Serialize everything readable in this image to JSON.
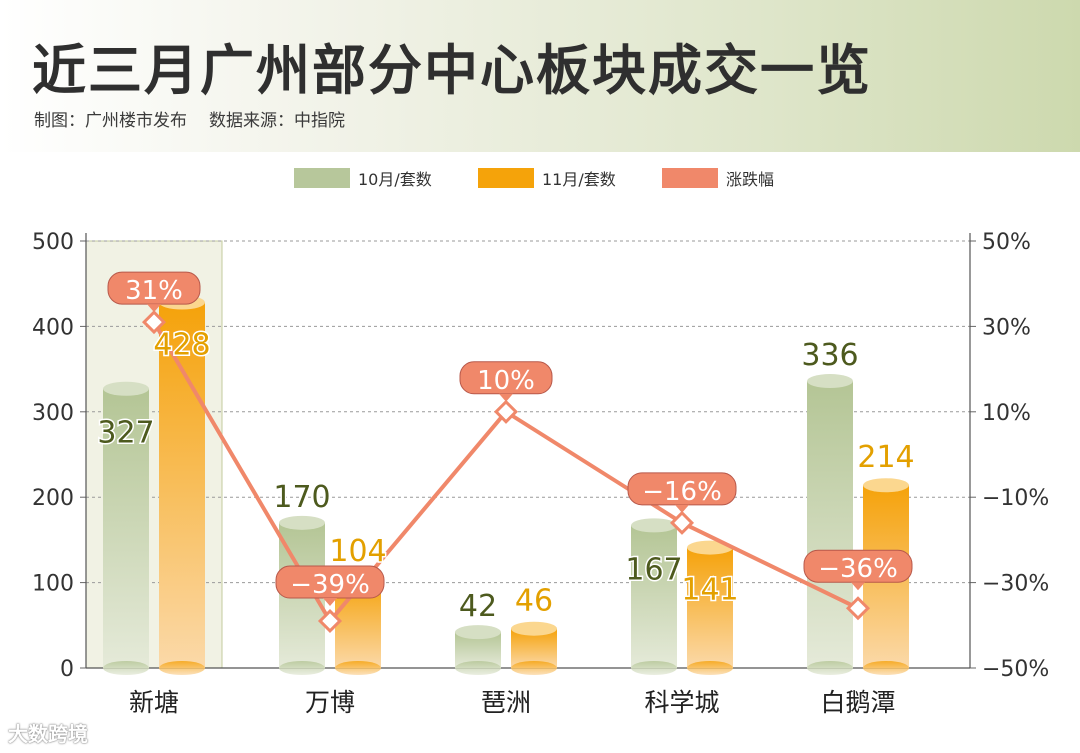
{
  "header": {
    "title": "近三月广州部分中心板块成交一览",
    "credit_maker": "制图：广州楼市发布",
    "credit_source": "数据来源：中指院"
  },
  "legend": {
    "oct": "10月/套数",
    "nov": "11月/套数",
    "change": "涨跌幅"
  },
  "watermark": "大数跨境",
  "colors": {
    "oct": "#b7c79b",
    "nov": "#f5a30a",
    "change": "#f0886a",
    "oct_label": "#4d5a1e",
    "nov_label": "#e3a000",
    "highlight_bg": "#f1f2e4",
    "highlight_border": "#c3cb9e"
  },
  "chart_data": {
    "type": "bar",
    "categories": [
      "新塘",
      "万博",
      "琶洲",
      "科学城",
      "白鹅潭"
    ],
    "series": [
      {
        "name": "10月/套数",
        "values": [
          327,
          170,
          42,
          167,
          336
        ]
      },
      {
        "name": "11月/套数",
        "values": [
          428,
          104,
          46,
          141,
          214
        ]
      },
      {
        "name": "涨跌幅",
        "type": "line",
        "axis": "right",
        "values": [
          31,
          -39,
          10,
          -16,
          -36
        ],
        "labels": [
          "31%",
          "−39%",
          "10%",
          "−16%",
          "−36%"
        ]
      }
    ],
    "y_left": {
      "range": [
        0,
        500
      ],
      "ticks": [
        "0",
        "100",
        "200",
        "300",
        "400",
        "500"
      ]
    },
    "y_right": {
      "range": [
        -50,
        50
      ],
      "ticks": [
        "−50%",
        "−30%",
        "−10%",
        "10%",
        "30%",
        "50%"
      ]
    },
    "highlighted_category": "新塘",
    "grid": true,
    "legend_position": "top"
  }
}
